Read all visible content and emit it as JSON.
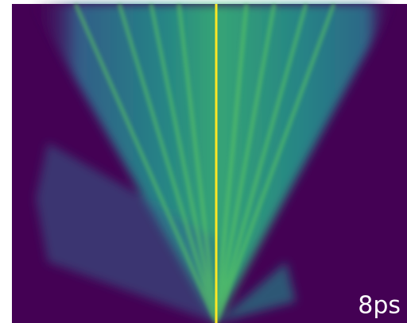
{
  "label": "8ps"
}
